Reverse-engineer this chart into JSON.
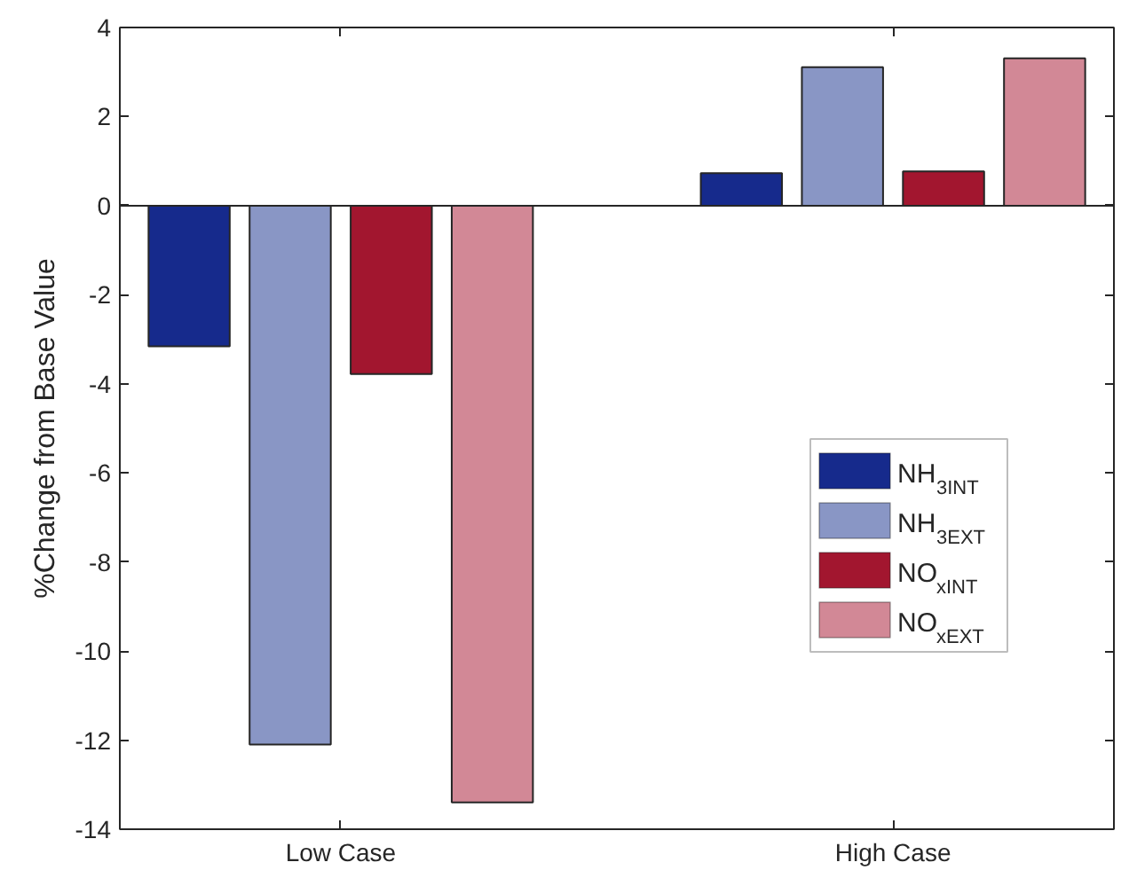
{
  "chart_data": {
    "type": "bar",
    "ylabel": "%Change from Base Value",
    "categories": [
      "Low Case",
      "High Case"
    ],
    "series": [
      {
        "name": "NH$_{3INT}$",
        "color": "#162a8c",
        "values": [
          -3.16,
          0.73
        ]
      },
      {
        "name": "NH$_{3EXT}$",
        "color": "#8996c5",
        "values": [
          -12.1,
          3.11
        ]
      },
      {
        "name": "NO$_{xINT}$",
        "color": "#a2162f",
        "values": [
          -3.78,
          0.77
        ]
      },
      {
        "name": "NO$_{xEXT}$",
        "color": "#d28896",
        "values": [
          -13.4,
          3.31
        ]
      }
    ],
    "ylim": [
      -14,
      4
    ],
    "yticks": [
      -14,
      -12,
      -10,
      -8,
      -6,
      -4,
      -2,
      0,
      2,
      4
    ],
    "grid": false,
    "legend": "right",
    "ref_lines": [
      {
        "axis": "y",
        "value": 0
      }
    ]
  }
}
